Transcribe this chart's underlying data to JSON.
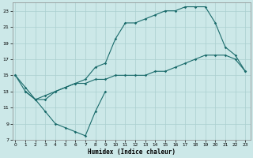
{
  "xlabel": "Humidex (Indice chaleur)",
  "background_color": "#cce8e8",
  "grid_color": "#aacfcf",
  "line_color": "#1a6b6b",
  "s1_x": [
    0,
    1,
    2,
    3,
    4,
    5,
    6,
    7,
    8,
    9
  ],
  "s1_y": [
    15,
    13,
    12,
    10.5,
    9,
    8.5,
    8,
    7.5,
    10.5,
    13
  ],
  "s2_x": [
    0,
    1,
    2,
    3,
    4,
    5,
    6,
    7,
    8,
    9,
    10,
    11,
    12,
    13,
    14,
    15,
    16,
    17,
    18,
    19,
    20,
    21,
    22,
    23
  ],
  "s2_y": [
    15,
    13.5,
    12,
    12,
    13,
    13.5,
    14,
    14,
    14.5,
    14.5,
    15,
    15,
    15,
    15,
    15.5,
    15.5,
    16,
    16.5,
    17,
    17.5,
    17.5,
    17.5,
    17,
    15.5
  ],
  "s3_x": [
    1,
    2,
    3,
    4,
    5,
    6,
    7,
    8,
    9,
    10,
    11,
    12,
    13,
    14,
    15,
    16,
    17,
    18,
    19,
    20,
    21,
    22,
    23
  ],
  "s3_y": [
    13,
    12,
    12.5,
    13,
    13.5,
    14,
    14.5,
    16,
    16.5,
    19.5,
    21.5,
    21.5,
    22,
    22.5,
    23,
    23,
    23.5,
    23.5,
    23.5,
    21.5,
    18.5,
    17.5,
    15.5
  ],
  "xlim": [
    -0.3,
    23.5
  ],
  "ylim": [
    7,
    24
  ],
  "yticks": [
    7,
    9,
    11,
    13,
    15,
    17,
    19,
    21,
    23
  ],
  "xticks": [
    0,
    1,
    2,
    3,
    4,
    5,
    6,
    7,
    8,
    9,
    10,
    11,
    12,
    13,
    14,
    15,
    16,
    17,
    18,
    19,
    20,
    21,
    22,
    23
  ]
}
